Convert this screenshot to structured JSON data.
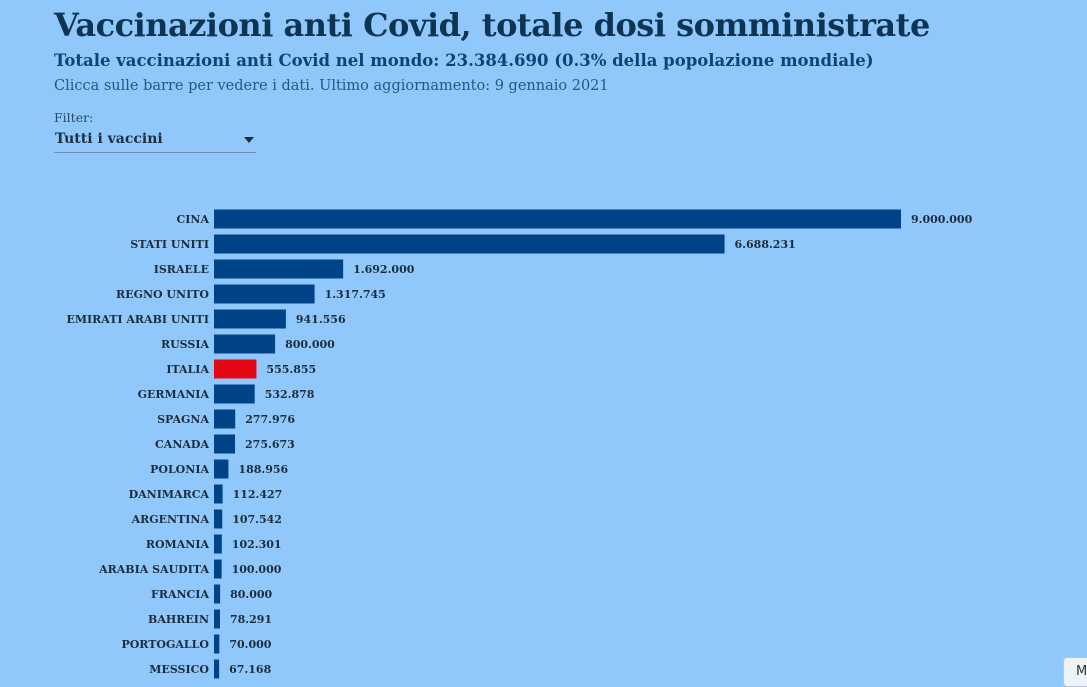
{
  "header": {
    "title": "Vaccinazioni anti Covid, totale dosi somministrate",
    "subtitle": "Totale vaccinazioni anti Covid nel mondo: 23.384.690 (0.3% della popolazione mondiale)",
    "note": "Clicca sulle barre per vedere i dati. Ultimo aggiornamento: 9 gennaio 2021"
  },
  "filter": {
    "label": "Filter:",
    "value": "Tutti i vaccini"
  },
  "corner_button": {
    "label": "M"
  },
  "colors": {
    "bar": "#004387",
    "highlight": "#e30613",
    "label": "#1b2d3d",
    "background": "#90c8fb"
  },
  "chart_data": {
    "type": "bar",
    "orientation": "horizontal",
    "highlight": "ITALIA",
    "xlim": [
      0,
      9000000
    ],
    "categories": [
      "CINA",
      "STATI UNITI",
      "ISRAELE",
      "REGNO UNITO",
      "EMIRATI ARABI UNITI",
      "RUSSIA",
      "ITALIA",
      "GERMANIA",
      "SPAGNA",
      "CANADA",
      "POLONIA",
      "DANIMARCA",
      "ARGENTINA",
      "ROMANIA",
      "ARABIA SAUDITA",
      "FRANCIA",
      "BAHREIN",
      "PORTOGALLO",
      "MESSICO"
    ],
    "values": [
      9000000,
      6688231,
      1692000,
      1317745,
      941556,
      800000,
      555855,
      532878,
      277976,
      275673,
      188956,
      112427,
      107542,
      102301,
      100000,
      80000,
      78291,
      70000,
      67168
    ],
    "value_labels": [
      "9.000.000",
      "6.688.231",
      "1.692.000",
      "1.317.745",
      "941.556",
      "800.000",
      "555.855",
      "532.878",
      "277.976",
      "275.673",
      "188.956",
      "112.427",
      "107.542",
      "102.301",
      "100.000",
      "80.000",
      "78.291",
      "70.000",
      "67.168"
    ]
  }
}
